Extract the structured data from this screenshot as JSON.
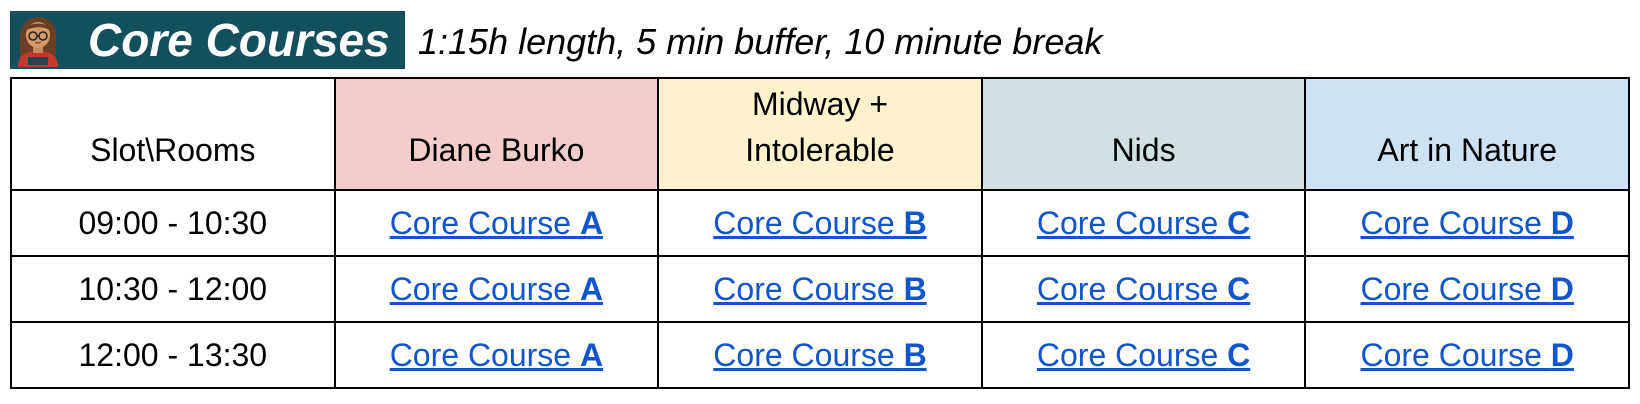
{
  "header": {
    "title": "Core Courses",
    "subtitle": "1:15h length, 5 min buffer, 10 minute break"
  },
  "table": {
    "corner_label": "Slot\\Rooms",
    "rooms": [
      {
        "lines": [
          "Diane Burko"
        ],
        "color": "#f4cccc"
      },
      {
        "lines": [
          "Midway +",
          "Intolerable"
        ],
        "color": "#fff2cc"
      },
      {
        "lines": [
          "Nids"
        ],
        "color": "#d0e0e3"
      },
      {
        "lines": [
          "Art in Nature"
        ],
        "color": "#cfe2f3"
      }
    ],
    "rows": [
      {
        "slot": "09:00 - 10:30",
        "cells": [
          {
            "prefix": "Core Course ",
            "letter": "A"
          },
          {
            "prefix": "Core Course ",
            "letter": "B"
          },
          {
            "prefix": "Core Course ",
            "letter": "C"
          },
          {
            "prefix": "Core Course ",
            "letter": "D"
          }
        ]
      },
      {
        "slot": "10:30 - 12:00",
        "cells": [
          {
            "prefix": "Core Course ",
            "letter": "A"
          },
          {
            "prefix": "Core Course ",
            "letter": "B"
          },
          {
            "prefix": "Core Course ",
            "letter": "C"
          },
          {
            "prefix": "Core Course ",
            "letter": "D"
          }
        ]
      },
      {
        "slot": "12:00 - 13:30",
        "cells": [
          {
            "prefix": "Core Course ",
            "letter": "A"
          },
          {
            "prefix": "Core Course ",
            "letter": "B"
          },
          {
            "prefix": "Core Course ",
            "letter": "C"
          },
          {
            "prefix": "Core Course ",
            "letter": "D"
          }
        ]
      }
    ]
  },
  "colors": {
    "title_bar": "#134f5c",
    "link": "#1155cc"
  }
}
